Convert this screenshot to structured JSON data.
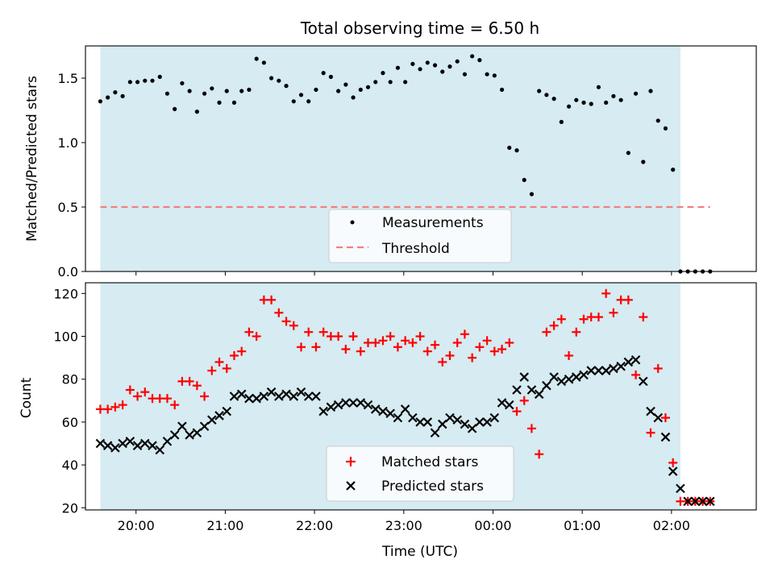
{
  "title": "Total observing time = 6.50 h",
  "chart_data": [
    {
      "type": "scatter",
      "ylabel": "Matched/Predicted stars",
      "xlabel": "",
      "xlim": [
        "19:26",
        "02:57"
      ],
      "ylim": [
        0,
        1.75
      ],
      "yticks": [
        0.0,
        0.5,
        1.0,
        1.5
      ],
      "ytick_labels": [
        "0.0",
        "0.5",
        "1.0",
        "1.5"
      ],
      "shaded_interval": [
        "19:36",
        "02:06"
      ],
      "legend_position": "bottom-center",
      "series": [
        {
          "name": "Measurements",
          "marker": "dot",
          "color": "#000000",
          "x": [
            "19:36",
            "19:41",
            "19:46",
            "19:51",
            "19:56",
            "20:01",
            "20:06",
            "20:11",
            "20:16",
            "20:21",
            "20:26",
            "20:31",
            "20:36",
            "20:41",
            "20:46",
            "20:51",
            "20:56",
            "21:01",
            "21:06",
            "21:11",
            "21:16",
            "21:21",
            "21:26",
            "21:31",
            "21:36",
            "21:41",
            "21:46",
            "21:51",
            "21:56",
            "22:01",
            "22:06",
            "22:11",
            "22:16",
            "22:21",
            "22:26",
            "22:31",
            "22:36",
            "22:41",
            "22:46",
            "22:51",
            "22:56",
            "23:01",
            "23:06",
            "23:11",
            "23:16",
            "23:21",
            "23:26",
            "23:31",
            "23:36",
            "23:41",
            "23:46",
            "23:51",
            "23:56",
            "00:01",
            "00:06",
            "00:11",
            "00:16",
            "00:21",
            "00:26",
            "00:31",
            "00:36",
            "00:41",
            "00:46",
            "00:51",
            "00:56",
            "01:01",
            "01:06",
            "01:11",
            "01:16",
            "01:21",
            "01:26",
            "01:31",
            "01:36",
            "01:41",
            "01:46",
            "01:51",
            "01:56",
            "02:01",
            "02:06",
            "02:11",
            "02:16",
            "02:21",
            "02:26"
          ],
          "values": [
            1.32,
            1.35,
            1.39,
            1.36,
            1.47,
            1.47,
            1.48,
            1.48,
            1.51,
            1.38,
            1.26,
            1.46,
            1.4,
            1.24,
            1.38,
            1.42,
            1.31,
            1.4,
            1.31,
            1.4,
            1.41,
            1.65,
            1.62,
            1.5,
            1.48,
            1.44,
            1.32,
            1.37,
            1.32,
            1.41,
            1.54,
            1.51,
            1.4,
            1.45,
            1.35,
            1.41,
            1.43,
            1.47,
            1.54,
            1.47,
            1.58,
            1.47,
            1.61,
            1.57,
            1.62,
            1.6,
            1.55,
            1.59,
            1.63,
            1.53,
            1.67,
            1.64,
            1.53,
            1.52,
            1.41,
            0.96,
            0.94,
            0.71,
            0.6,
            1.4,
            1.37,
            1.34,
            1.16,
            1.28,
            1.33,
            1.31,
            1.3,
            1.43,
            1.31,
            1.36,
            1.33,
            0.92,
            1.38,
            0.85,
            1.4,
            1.17,
            1.11,
            0.79,
            0.0,
            0.0,
            0.0,
            0.0,
            0.0
          ]
        },
        {
          "name": "Threshold",
          "marker": "dashed-line",
          "color": "#f08080",
          "x": [
            "19:36",
            "02:26"
          ],
          "values": [
            0.5,
            0.5
          ]
        }
      ]
    },
    {
      "type": "scatter",
      "ylabel": "Count",
      "xlabel": "Time (UTC)",
      "xlim": [
        "19:26",
        "02:57"
      ],
      "ylim": [
        19,
        125
      ],
      "yticks": [
        20,
        40,
        60,
        80,
        100,
        120
      ],
      "ytick_labels": [
        "20",
        "40",
        "60",
        "80",
        "100",
        "120"
      ],
      "xticks": [
        "20:00",
        "21:00",
        "22:00",
        "23:00",
        "00:00",
        "01:00",
        "02:00"
      ],
      "shaded_interval": [
        "19:36",
        "02:06"
      ],
      "legend_position": "bottom-center",
      "series": [
        {
          "name": "Matched stars",
          "marker": "plus",
          "color": "#ff0000",
          "x": [
            "19:36",
            "19:41",
            "19:46",
            "19:51",
            "19:56",
            "20:01",
            "20:06",
            "20:11",
            "20:16",
            "20:21",
            "20:26",
            "20:31",
            "20:36",
            "20:41",
            "20:46",
            "20:51",
            "20:56",
            "21:01",
            "21:06",
            "21:11",
            "21:16",
            "21:21",
            "21:26",
            "21:31",
            "21:36",
            "21:41",
            "21:46",
            "21:51",
            "21:56",
            "22:01",
            "22:06",
            "22:11",
            "22:16",
            "22:21",
            "22:26",
            "22:31",
            "22:36",
            "22:41",
            "22:46",
            "22:51",
            "22:56",
            "23:01",
            "23:06",
            "23:11",
            "23:16",
            "23:21",
            "23:26",
            "23:31",
            "23:36",
            "23:41",
            "23:46",
            "23:51",
            "23:56",
            "00:01",
            "00:06",
            "00:11",
            "00:16",
            "00:21",
            "00:26",
            "00:31",
            "00:36",
            "00:41",
            "00:46",
            "00:51",
            "00:56",
            "01:01",
            "01:06",
            "01:11",
            "01:16",
            "01:21",
            "01:26",
            "01:31",
            "01:36",
            "01:41",
            "01:46",
            "01:51",
            "01:56",
            "02:01",
            "02:06",
            "02:11",
            "02:16",
            "02:21",
            "02:26"
          ],
          "values": [
            66,
            66,
            67,
            68,
            75,
            72,
            74,
            71,
            71,
            71,
            68,
            79,
            79,
            77,
            72,
            84,
            88,
            85,
            91,
            93,
            102,
            100,
            117,
            117,
            111,
            107,
            105,
            95,
            102,
            95,
            102,
            100,
            100,
            94,
            100,
            93,
            97,
            97,
            98,
            100,
            95,
            98,
            97,
            100,
            93,
            96,
            88,
            91,
            97,
            101,
            90,
            95,
            98,
            93,
            94,
            97,
            65,
            70,
            57,
            45,
            102,
            105,
            108,
            91,
            102,
            108,
            109,
            109,
            120,
            111,
            117,
            117,
            82,
            109,
            55,
            85,
            62,
            41,
            23,
            23,
            23,
            23,
            23
          ]
        },
        {
          "name": "Predicted stars",
          "marker": "x",
          "color": "#000000",
          "x": [
            "19:36",
            "19:41",
            "19:46",
            "19:51",
            "19:56",
            "20:01",
            "20:06",
            "20:11",
            "20:16",
            "20:21",
            "20:26",
            "20:31",
            "20:36",
            "20:41",
            "20:46",
            "20:51",
            "20:56",
            "21:01",
            "21:06",
            "21:11",
            "21:16",
            "21:21",
            "21:26",
            "21:31",
            "21:36",
            "21:41",
            "21:46",
            "21:51",
            "21:56",
            "22:01",
            "22:06",
            "22:11",
            "22:16",
            "22:21",
            "22:26",
            "22:31",
            "22:36",
            "22:41",
            "22:46",
            "22:51",
            "22:56",
            "23:01",
            "23:06",
            "23:11",
            "23:16",
            "23:21",
            "23:26",
            "23:31",
            "23:36",
            "23:41",
            "23:46",
            "23:51",
            "23:56",
            "00:01",
            "00:06",
            "00:11",
            "00:16",
            "00:21",
            "00:26",
            "00:31",
            "00:36",
            "00:41",
            "00:46",
            "00:51",
            "00:56",
            "01:01",
            "01:06",
            "01:11",
            "01:16",
            "01:21",
            "01:26",
            "01:31",
            "01:36",
            "01:41",
            "01:46",
            "01:51",
            "01:56",
            "02:01",
            "02:06",
            "02:11",
            "02:16",
            "02:21",
            "02:26"
          ],
          "values": [
            50,
            49,
            48,
            50,
            51,
            49,
            50,
            49,
            47,
            51,
            54,
            58,
            54,
            55,
            58,
            61,
            63,
            65,
            72,
            73,
            71,
            71,
            72,
            74,
            72,
            73,
            72,
            74,
            72,
            72,
            65,
            67,
            68,
            69,
            69,
            69,
            68,
            66,
            65,
            64,
            62,
            66,
            62,
            60,
            60,
            55,
            59,
            62,
            61,
            59,
            57,
            60,
            60,
            62,
            69,
            68,
            75,
            81,
            75,
            73,
            77,
            81,
            79,
            80,
            81,
            82,
            84,
            84,
            84,
            85,
            86,
            88,
            89,
            79,
            65,
            62,
            53,
            37,
            29,
            23,
            23,
            23,
            23
          ]
        }
      ]
    }
  ]
}
